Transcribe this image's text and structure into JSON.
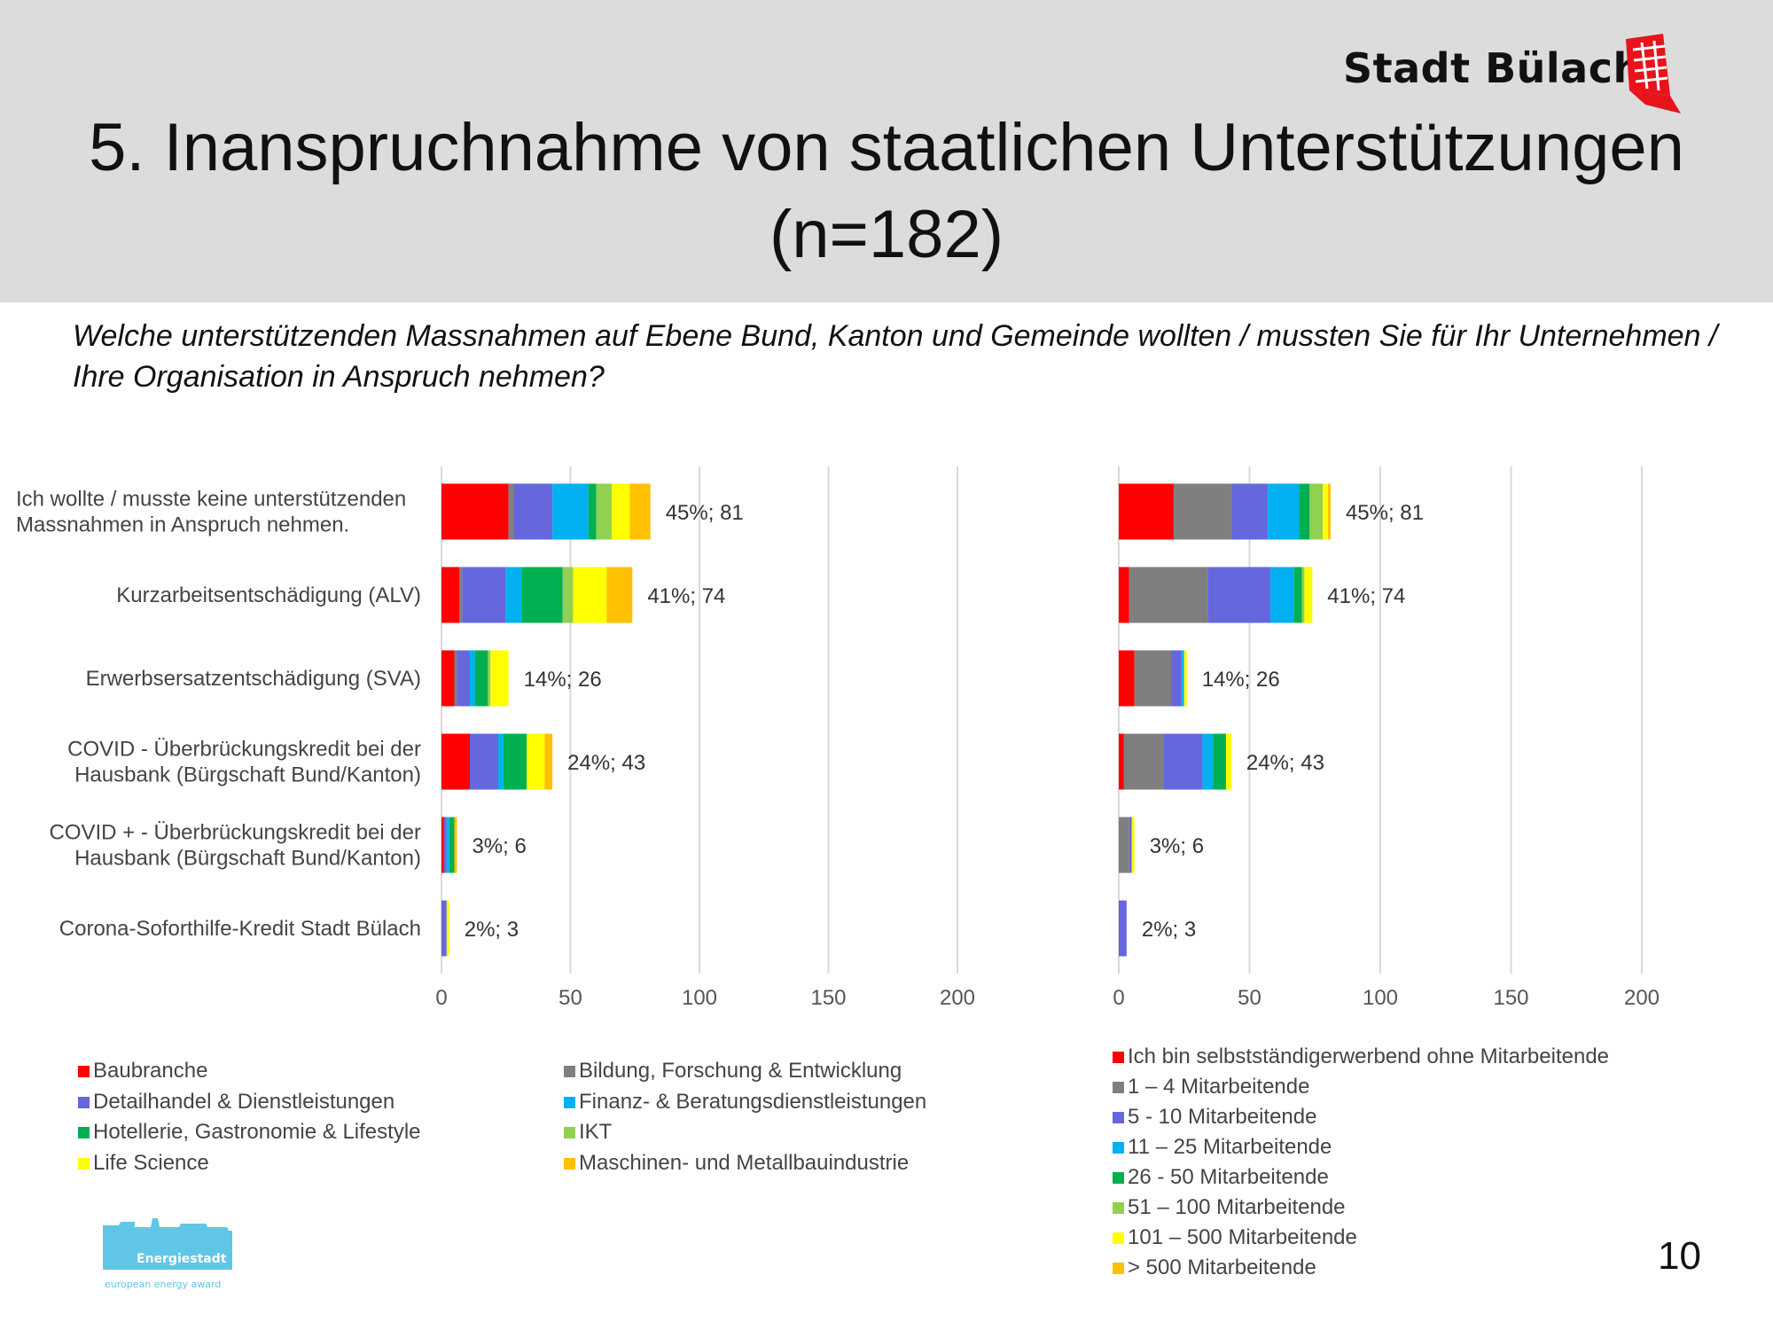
{
  "header": {
    "brand": "Stadt Bülach",
    "title_line1": "5. Inanspruchnahme von staatlichen Unterstützungen",
    "title_line2": "(n=182)"
  },
  "question": "Welche unterstützenden Massnahmen auf Ebene Bund, Kanton und Gemeinde wollten / mussten Sie für Ihr Unternehmen / Ihre Organisation in Anspruch nehmen?",
  "page_number": "10",
  "energie_logo": {
    "text1": "Energiestadt",
    "text2": "european energy award"
  },
  "chart_data": [
    {
      "type": "bar",
      "orientation": "horizontal",
      "stacked": true,
      "categories": [
        [
          "Ich wollte / musste keine unterstützenden",
          "Massnahmen in Anspruch nehmen."
        ],
        [
          "Kurzarbeitsentschädigung (ALV)"
        ],
        [
          "Erwerbsersatzentschädigung (SVA)"
        ],
        [
          "COVID - Überbrückungskredit bei der",
          "Hausbank (Bürgschaft Bund/Kanton)"
        ],
        [
          "COVID + - Überbrückungskredit bei der",
          "Hausbank (Bürgschaft Bund/Kanton)"
        ],
        [
          "Corona-Soforthilfe-Kredit Stadt Bülach"
        ]
      ],
      "data_labels": [
        "45%; 81",
        "41%; 74",
        "14%; 26",
        "24%; 43",
        "3%; 6",
        "2%; 3"
      ],
      "xlim": [
        0,
        200
      ],
      "x_ticks": [
        0,
        50,
        100,
        150,
        200
      ],
      "grid": true,
      "legend_position": "bottom",
      "series": [
        {
          "name": "Baubranche",
          "color": "#ff0000",
          "values": [
            26,
            7,
            5,
            11,
            1,
            0
          ]
        },
        {
          "name": "Bildung, Forschung & Entwicklung",
          "color": "#7f7f7f",
          "values": [
            2,
            1,
            1,
            0,
            0,
            0
          ]
        },
        {
          "name": "Detailhandel & Dienstleistungen",
          "color": "#6666dd",
          "values": [
            15,
            17,
            5,
            11,
            1,
            2
          ]
        },
        {
          "name": "Finanz- & Beratungsdienstleistungen",
          "color": "#00b0f0",
          "values": [
            14,
            6,
            2,
            2,
            1,
            0
          ]
        },
        {
          "name": "Hotellerie, Gastronomie & Lifestyle",
          "color": "#00b050",
          "values": [
            3,
            16,
            5,
            9,
            2,
            0
          ]
        },
        {
          "name": "IKT",
          "color": "#92d050",
          "values": [
            6,
            4,
            1,
            0,
            0,
            0
          ]
        },
        {
          "name": "Life Science",
          "color": "#ffff00",
          "values": [
            7,
            13,
            7,
            7,
            0,
            1
          ]
        },
        {
          "name": "Maschinen- und Metallbauindustrie",
          "color": "#ffc000",
          "values": [
            8,
            10,
            0,
            3,
            1,
            0
          ]
        }
      ]
    },
    {
      "type": "bar",
      "orientation": "horizontal",
      "stacked": true,
      "categories": [
        [
          "Ich wollte / musste keine unterstützenden",
          "Massnahmen in Anspruch nehmen."
        ],
        [
          "Kurzarbeitsentschädigung (ALV)"
        ],
        [
          "Erwerbsersatzentschädigung (SVA)"
        ],
        [
          "COVID - Überbrückungskredit bei der",
          "Hausbank (Bürgschaft Bund/Kanton)"
        ],
        [
          "COVID + - Überbrückungskredit bei der",
          "Hausbank (Bürgschaft Bund/Kanton)"
        ],
        [
          "Corona-Soforthilfe-Kredit Stadt Bülach"
        ]
      ],
      "data_labels": [
        "45%; 81",
        "41%; 74",
        "14%; 26",
        "24%; 43",
        "3%; 6",
        "2%; 3"
      ],
      "xlim": [
        0,
        200
      ],
      "x_ticks": [
        0,
        50,
        100,
        150,
        200
      ],
      "grid": true,
      "legend_position": "bottom",
      "series": [
        {
          "name": "Ich bin selbstständigerwerbend ohne Mitarbeitende",
          "color": "#ff0000",
          "values": [
            21,
            4,
            6,
            2,
            0,
            0
          ]
        },
        {
          "name": "1 – 4 Mitarbeitende",
          "color": "#7f7f7f",
          "values": [
            22,
            30,
            14,
            15,
            4,
            0
          ]
        },
        {
          "name": "5 - 10 Mitarbeitende",
          "color": "#6666dd",
          "values": [
            14,
            24,
            4,
            15,
            1,
            3
          ]
        },
        {
          "name": "11 – 25 Mitarbeitende",
          "color": "#00b0f0",
          "values": [
            12,
            9,
            1,
            4,
            0,
            0
          ]
        },
        {
          "name": "26 - 50 Mitarbeitende",
          "color": "#00b050",
          "values": [
            4,
            3,
            0,
            5,
            0,
            0
          ]
        },
        {
          "name": "51 – 100 Mitarbeitende",
          "color": "#92d050",
          "values": [
            5,
            1,
            0,
            0,
            0,
            0
          ]
        },
        {
          "name": "101 – 500 Mitarbeitende",
          "color": "#ffff00",
          "values": [
            2,
            3,
            1,
            2,
            1,
            0
          ]
        },
        {
          "name": "> 500 Mitarbeitende",
          "color": "#ffc000",
          "values": [
            1,
            0,
            0,
            0,
            0,
            0
          ]
        }
      ]
    }
  ]
}
